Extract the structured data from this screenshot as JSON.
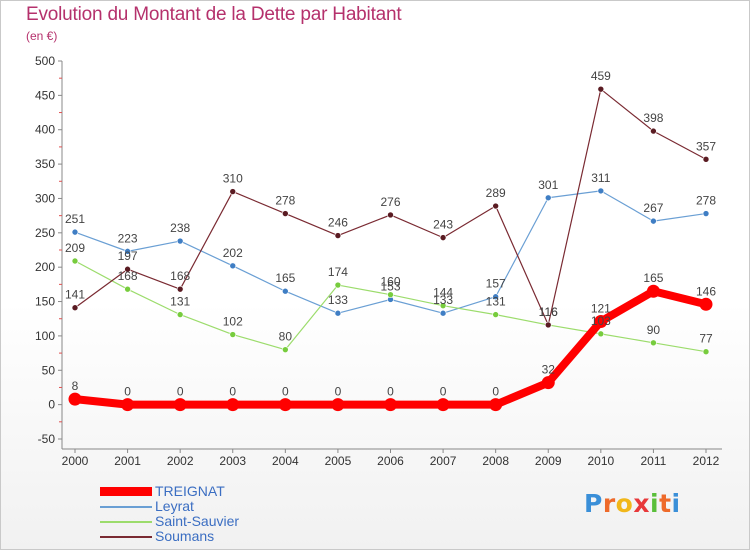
{
  "header": {
    "title": "Evolution du Montant de la Dette par Habitant",
    "subtitle": "(en €)"
  },
  "logo": {
    "text": "Proxiti"
  },
  "chart_data": {
    "type": "line",
    "title": "Evolution du Montant de la Dette par Habitant",
    "subtitle": "(en €)",
    "categories": [
      "2000",
      "2001",
      "2002",
      "2003",
      "2004",
      "2005",
      "2006",
      "2007",
      "2008",
      "2009",
      "2010",
      "2011",
      "2012"
    ],
    "yticks": [
      -50,
      0,
      50,
      100,
      150,
      200,
      250,
      300,
      350,
      400,
      450,
      500
    ],
    "ylim": [
      -50,
      500
    ],
    "grid": false,
    "legend_position": "bottom-left",
    "series": [
      {
        "name": "TREIGNAT",
        "color": "#ff0000",
        "emphasis": true,
        "values": [
          8,
          0,
          0,
          0,
          0,
          0,
          0,
          0,
          0,
          32,
          121,
          165,
          146
        ]
      },
      {
        "name": "Leyrat",
        "color": "#6a9fd4",
        "marker": "#3f7ec4",
        "values": [
          251,
          223,
          238,
          202,
          165,
          133,
          153,
          133,
          157,
          301,
          311,
          267,
          278
        ]
      },
      {
        "name": "Saint-Sauvier",
        "color": "#9cdc6c",
        "marker": "#77cc3d",
        "values": [
          209,
          168,
          131,
          102,
          80,
          174,
          160,
          144,
          131,
          116,
          103,
          90,
          77
        ]
      },
      {
        "name": "Soumans",
        "color": "#7a2a32",
        "marker": "#5a1b22",
        "values": [
          141,
          197,
          168,
          310,
          278,
          246,
          276,
          243,
          289,
          116,
          459,
          398,
          357
        ]
      }
    ]
  }
}
